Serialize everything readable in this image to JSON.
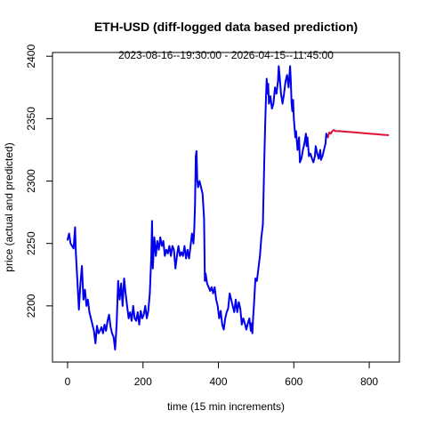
{
  "chart_data": {
    "type": "line",
    "title": "ETH-USD (diff-logged data based prediction)",
    "subtitle": "2023-08-16--19:30:00  -  2026-04-15--11:45:00",
    "xlabel": "time (15 min increments)",
    "ylabel": "price (actual and predicted)",
    "xlim": [
      -40,
      880
    ],
    "ylim": [
      2155,
      2403
    ],
    "x_ticks": [
      0,
      200,
      400,
      600,
      800
    ],
    "y_ticks": [
      2200,
      2250,
      2300,
      2350,
      2400
    ],
    "series": [
      {
        "color": "#0000ee",
        "points": [
          [
            0,
            2253
          ],
          [
            4,
            2258
          ],
          [
            8,
            2250
          ],
          [
            12,
            2248
          ],
          [
            16,
            2246
          ],
          [
            20,
            2263
          ],
          [
            22,
            2242
          ],
          [
            26,
            2220
          ],
          [
            30,
            2197
          ],
          [
            34,
            2218
          ],
          [
            38,
            2232
          ],
          [
            42,
            2205
          ],
          [
            46,
            2213
          ],
          [
            50,
            2200
          ],
          [
            54,
            2205
          ],
          [
            58,
            2195
          ],
          [
            62,
            2190
          ],
          [
            66,
            2185
          ],
          [
            70,
            2180
          ],
          [
            74,
            2170
          ],
          [
            78,
            2184
          ],
          [
            82,
            2178
          ],
          [
            86,
            2180
          ],
          [
            90,
            2183
          ],
          [
            94,
            2178
          ],
          [
            98,
            2185
          ],
          [
            102,
            2180
          ],
          [
            106,
            2188
          ],
          [
            110,
            2193
          ],
          [
            114,
            2183
          ],
          [
            118,
            2178
          ],
          [
            122,
            2175
          ],
          [
            126,
            2165
          ],
          [
            130,
            2185
          ],
          [
            134,
            2220
          ],
          [
            138,
            2205
          ],
          [
            142,
            2218
          ],
          [
            146,
            2200
          ],
          [
            150,
            2222
          ],
          [
            154,
            2210
          ],
          [
            158,
            2200
          ],
          [
            162,
            2190
          ],
          [
            166,
            2195
          ],
          [
            170,
            2188
          ],
          [
            174,
            2200
          ],
          [
            178,
            2190
          ],
          [
            182,
            2188
          ],
          [
            186,
            2195
          ],
          [
            190,
            2185
          ],
          [
            194,
            2196
          ],
          [
            198,
            2190
          ],
          [
            202,
            2193
          ],
          [
            206,
            2200
          ],
          [
            210,
            2190
          ],
          [
            214,
            2196
          ],
          [
            218,
            2210
          ],
          [
            222,
            2240
          ],
          [
            224,
            2268
          ],
          [
            226,
            2230
          ],
          [
            230,
            2255
          ],
          [
            234,
            2240
          ],
          [
            238,
            2252
          ],
          [
            242,
            2245
          ],
          [
            246,
            2255
          ],
          [
            250,
            2248
          ],
          [
            254,
            2252
          ],
          [
            258,
            2240
          ],
          [
            262,
            2245
          ],
          [
            266,
            2242
          ],
          [
            270,
            2248
          ],
          [
            274,
            2240
          ],
          [
            278,
            2248
          ],
          [
            282,
            2245
          ],
          [
            286,
            2230
          ],
          [
            290,
            2240
          ],
          [
            294,
            2248
          ],
          [
            298,
            2240
          ],
          [
            302,
            2243
          ],
          [
            306,
            2240
          ],
          [
            310,
            2248
          ],
          [
            314,
            2238
          ],
          [
            318,
            2245
          ],
          [
            322,
            2238
          ],
          [
            326,
            2248
          ],
          [
            330,
            2258
          ],
          [
            334,
            2250
          ],
          [
            336,
            2262
          ],
          [
            338,
            2280
          ],
          [
            340,
            2320
          ],
          [
            342,
            2324
          ],
          [
            344,
            2300
          ],
          [
            346,
            2295
          ],
          [
            350,
            2300
          ],
          [
            354,
            2295
          ],
          [
            358,
            2290
          ],
          [
            362,
            2270
          ],
          [
            364,
            2220
          ],
          [
            366,
            2226
          ],
          [
            370,
            2218
          ],
          [
            374,
            2215
          ],
          [
            378,
            2212
          ],
          [
            382,
            2215
          ],
          [
            386,
            2210
          ],
          [
            390,
            2215
          ],
          [
            394,
            2205
          ],
          [
            398,
            2200
          ],
          [
            402,
            2190
          ],
          [
            406,
            2196
          ],
          [
            410,
            2185
          ],
          [
            414,
            2181
          ],
          [
            418,
            2190
          ],
          [
            422,
            2195
          ],
          [
            426,
            2198
          ],
          [
            430,
            2210
          ],
          [
            434,
            2205
          ],
          [
            438,
            2200
          ],
          [
            442,
            2195
          ],
          [
            446,
            2205
          ],
          [
            450,
            2195
          ],
          [
            454,
            2203
          ],
          [
            458,
            2198
          ],
          [
            462,
            2185
          ],
          [
            466,
            2190
          ],
          [
            470,
            2186
          ],
          [
            474,
            2181
          ],
          [
            478,
            2186
          ],
          [
            482,
            2190
          ],
          [
            486,
            2180
          ],
          [
            488,
            2186
          ],
          [
            490,
            2178
          ],
          [
            492,
            2190
          ],
          [
            494,
            2200
          ],
          [
            496,
            2210
          ],
          [
            498,
            2222
          ],
          [
            502,
            2220
          ],
          [
            506,
            2230
          ],
          [
            510,
            2240
          ],
          [
            514,
            2255
          ],
          [
            518,
            2265
          ],
          [
            522,
            2320
          ],
          [
            524,
            2345
          ],
          [
            526,
            2365
          ],
          [
            528,
            2382
          ],
          [
            530,
            2370
          ],
          [
            532,
            2378
          ],
          [
            534,
            2362
          ],
          [
            538,
            2368
          ],
          [
            542,
            2358
          ],
          [
            546,
            2362
          ],
          [
            550,
            2375
          ],
          [
            554,
            2370
          ],
          [
            558,
            2380
          ],
          [
            560,
            2392
          ],
          [
            562,
            2385
          ],
          [
            566,
            2370
          ],
          [
            570,
            2362
          ],
          [
            574,
            2370
          ],
          [
            578,
            2380
          ],
          [
            582,
            2385
          ],
          [
            586,
            2375
          ],
          [
            590,
            2392
          ],
          [
            592,
            2380
          ],
          [
            594,
            2362
          ],
          [
            596,
            2356
          ],
          [
            598,
            2365
          ],
          [
            600,
            2350
          ],
          [
            604,
            2335
          ],
          [
            606,
            2340
          ],
          [
            610,
            2325
          ],
          [
            614,
            2335
          ],
          [
            616,
            2315
          ],
          [
            620,
            2318
          ],
          [
            624,
            2325
          ],
          [
            628,
            2330
          ],
          [
            632,
            2338
          ],
          [
            634,
            2328
          ],
          [
            636,
            2335
          ],
          [
            640,
            2320
          ],
          [
            644,
            2322
          ],
          [
            648,
            2318
          ],
          [
            652,
            2315
          ],
          [
            656,
            2320
          ],
          [
            658,
            2328
          ],
          [
            662,
            2322
          ],
          [
            666,
            2318
          ],
          [
            670,
            2325
          ],
          [
            672,
            2317
          ],
          [
            676,
            2320
          ],
          [
            680,
            2325
          ],
          [
            684,
            2330
          ],
          [
            686,
            2338
          ],
          [
            690,
            2335
          ]
        ]
      },
      {
        "color": "#dd1133",
        "points": [
          [
            690,
            2335
          ],
          [
            694,
            2339
          ],
          [
            698,
            2338
          ],
          [
            702,
            2340
          ],
          [
            706,
            2341
          ],
          [
            710,
            2340
          ],
          [
            720,
            2340
          ],
          [
            740,
            2339.5
          ],
          [
            760,
            2339
          ],
          [
            780,
            2338.5
          ],
          [
            800,
            2338
          ],
          [
            820,
            2337.5
          ],
          [
            840,
            2337
          ],
          [
            850,
            2336.8
          ]
        ]
      }
    ]
  }
}
